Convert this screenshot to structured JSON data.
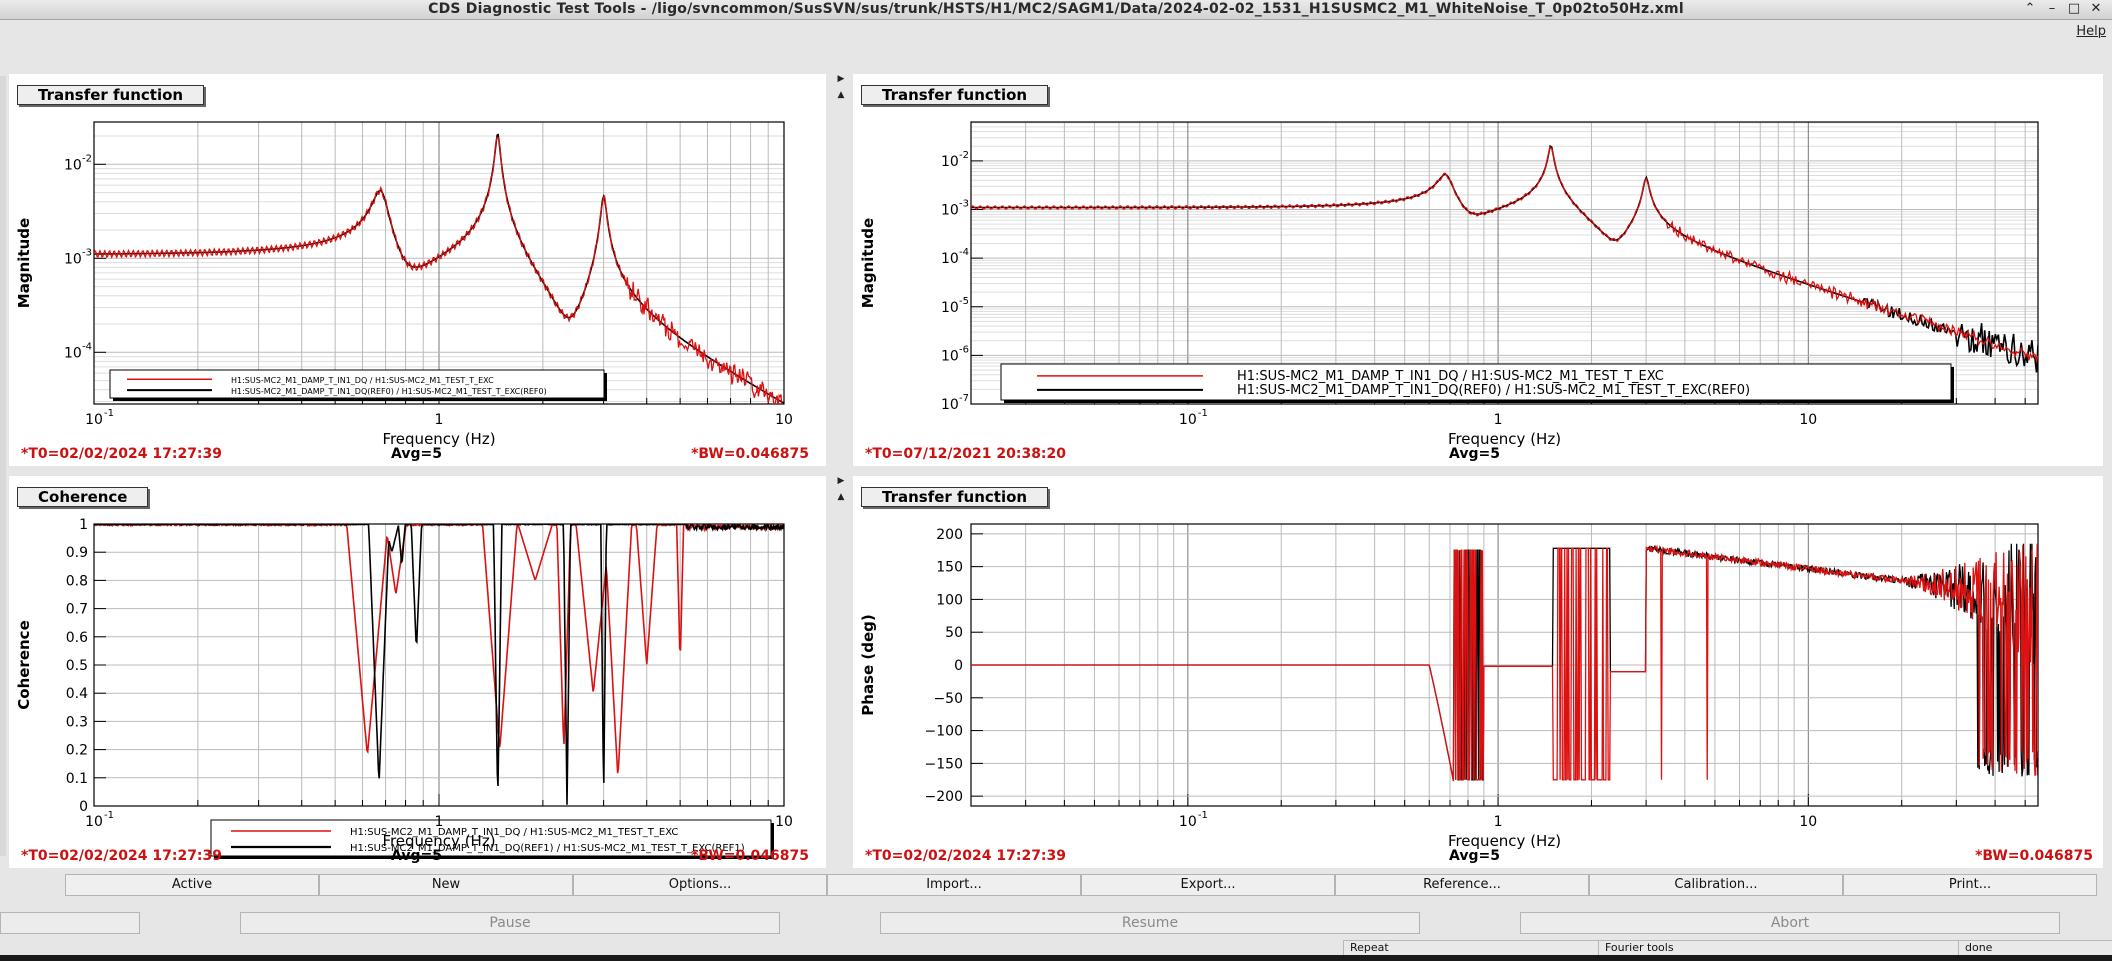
{
  "window": {
    "title": "CDS Diagnostic Test Tools - /ligo/svncommon/SusSVN/sus/trunk/HSTS/H1/MC2/SAGM1/Data/2024-02-02_1531_H1SUSMC2_M1_WhiteNoise_T_0p02to50Hz.xml"
  },
  "menu": {
    "help": "Help"
  },
  "colors": {
    "ref": "#000000",
    "current": "#dd1111",
    "stamp": "#cc1111"
  },
  "panels": [
    {
      "label": "Transfer function",
      "ylabel": "Magnitude",
      "xlabel": "Frequency (Hz)",
      "xticks": [
        "10",
        "1",
        "10"
      ],
      "yticks": [
        "10",
        "10",
        "10"
      ],
      "yexp": [
        "-2",
        "-3",
        "-4"
      ],
      "xexp0": "-1",
      "legend": [
        "H1:SUS-MC2_M1_DAMP_T_IN1_DQ / H1:SUS-MC2_M1_TEST_T_EXC",
        "H1:SUS-MC2_M1_DAMP_T_IN1_DQ(REF0) / H1:SUS-MC2_M1_TEST_T_EXC(REF0)"
      ],
      "t0": "*T0=02/02/2024 17:27:39",
      "avg": "Avg=5",
      "bw": "*BW=0.046875"
    },
    {
      "label": "Transfer function",
      "ylabel": "Magnitude",
      "xlabel": "Frequency (Hz)",
      "xticks": [
        "10",
        "1",
        "10"
      ],
      "yticks": [
        "10",
        "10",
        "10",
        "10",
        "10",
        "10"
      ],
      "yexp": [
        "-2",
        "-3",
        "-4",
        "-5",
        "-6",
        "-7"
      ],
      "xexp0": "-1",
      "legend": [
        "H1:SUS-MC2_M1_DAMP_T_IN1_DQ / H1:SUS-MC2_M1_TEST_T_EXC",
        "H1:SUS-MC2_M1_DAMP_T_IN1_DQ(REF0) / H1:SUS-MC2_M1_TEST_T_EXC(REF0)"
      ],
      "t0": "*T0=07/12/2021 20:38:20",
      "avg": "Avg=5",
      "bw": ""
    },
    {
      "label": "Coherence",
      "ylabel": "Coherence",
      "xlabel": "Frequency (Hz)",
      "xticks": [
        "10",
        "1",
        "10"
      ],
      "yticks": [
        "1",
        "0.9",
        "0.8",
        "0.7",
        "0.6",
        "0.5",
        "0.4",
        "0.3",
        "0.2",
        "0.1",
        "0"
      ],
      "xexp0": "-1",
      "legend": [
        "H1:SUS-MC2_M1_DAMP_T_IN1_DQ / H1:SUS-MC2_M1_TEST_T_EXC",
        "H1:SUS-MC2_M1_DAMP_T_IN1_DQ(REF1) / H1:SUS-MC2_M1_TEST_T_EXC(REF1)"
      ],
      "t0": "*T0=02/02/2024 17:27:39",
      "avg": "Avg=5",
      "bw": "*BW=0.046875"
    },
    {
      "label": "Transfer function",
      "ylabel": "Phase (deg)",
      "xlabel": "Frequency (Hz)",
      "xticks": [
        "10",
        "1",
        "10"
      ],
      "yticks": [
        "200",
        "150",
        "100",
        "50",
        "0",
        "−50",
        "−100",
        "−150",
        "−200"
      ],
      "xexp0": "-1",
      "t0": "*T0=02/02/2024 17:27:39",
      "avg": "Avg=5",
      "bw": "*BW=0.046875"
    }
  ],
  "buttons": [
    "Active",
    "New",
    "Options...",
    "Import...",
    "Export...",
    "Reference...",
    "Calibration...",
    "Print..."
  ],
  "controls": [
    "Pause",
    "Resume",
    "Abort"
  ],
  "status": [
    "Repeat",
    "Fourier tools",
    "done"
  ]
}
